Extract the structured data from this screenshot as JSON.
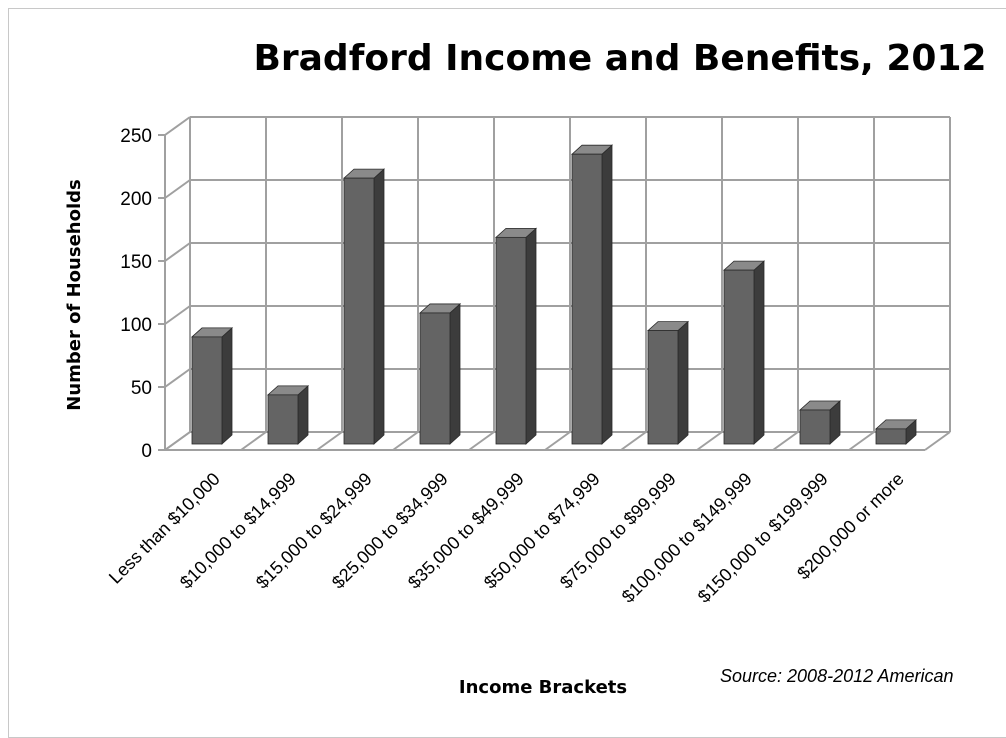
{
  "chart_data": {
    "type": "bar",
    "title": "Bradford Income and Benefits, 2012",
    "xlabel": "Income Brackets",
    "ylabel": "Number of Households",
    "source": "Source: 2008-2012 American",
    "ylim": [
      0,
      250
    ],
    "yticks": [
      "0",
      "50",
      "100",
      "150",
      "200",
      "250"
    ],
    "grid": true,
    "categories": [
      "Less than $10,000",
      "$10,000 to $14,999",
      "$15,000 to $24,999",
      "$25,000 to $34,999",
      "$35,000 to $49,999",
      "$50,000 to $74,999",
      "$75,000 to $99,999",
      "$100,000 to $149,999",
      "$150,000 to $199,999",
      "$200,000 or more"
    ],
    "values": [
      85,
      39,
      211,
      104,
      164,
      230,
      90,
      138,
      27,
      12
    ],
    "colors": {
      "bar_front": "#646464",
      "bar_side": "#3c3c3c",
      "bar_top": "#8a8a8a",
      "grid": "#a0a0a0"
    }
  }
}
